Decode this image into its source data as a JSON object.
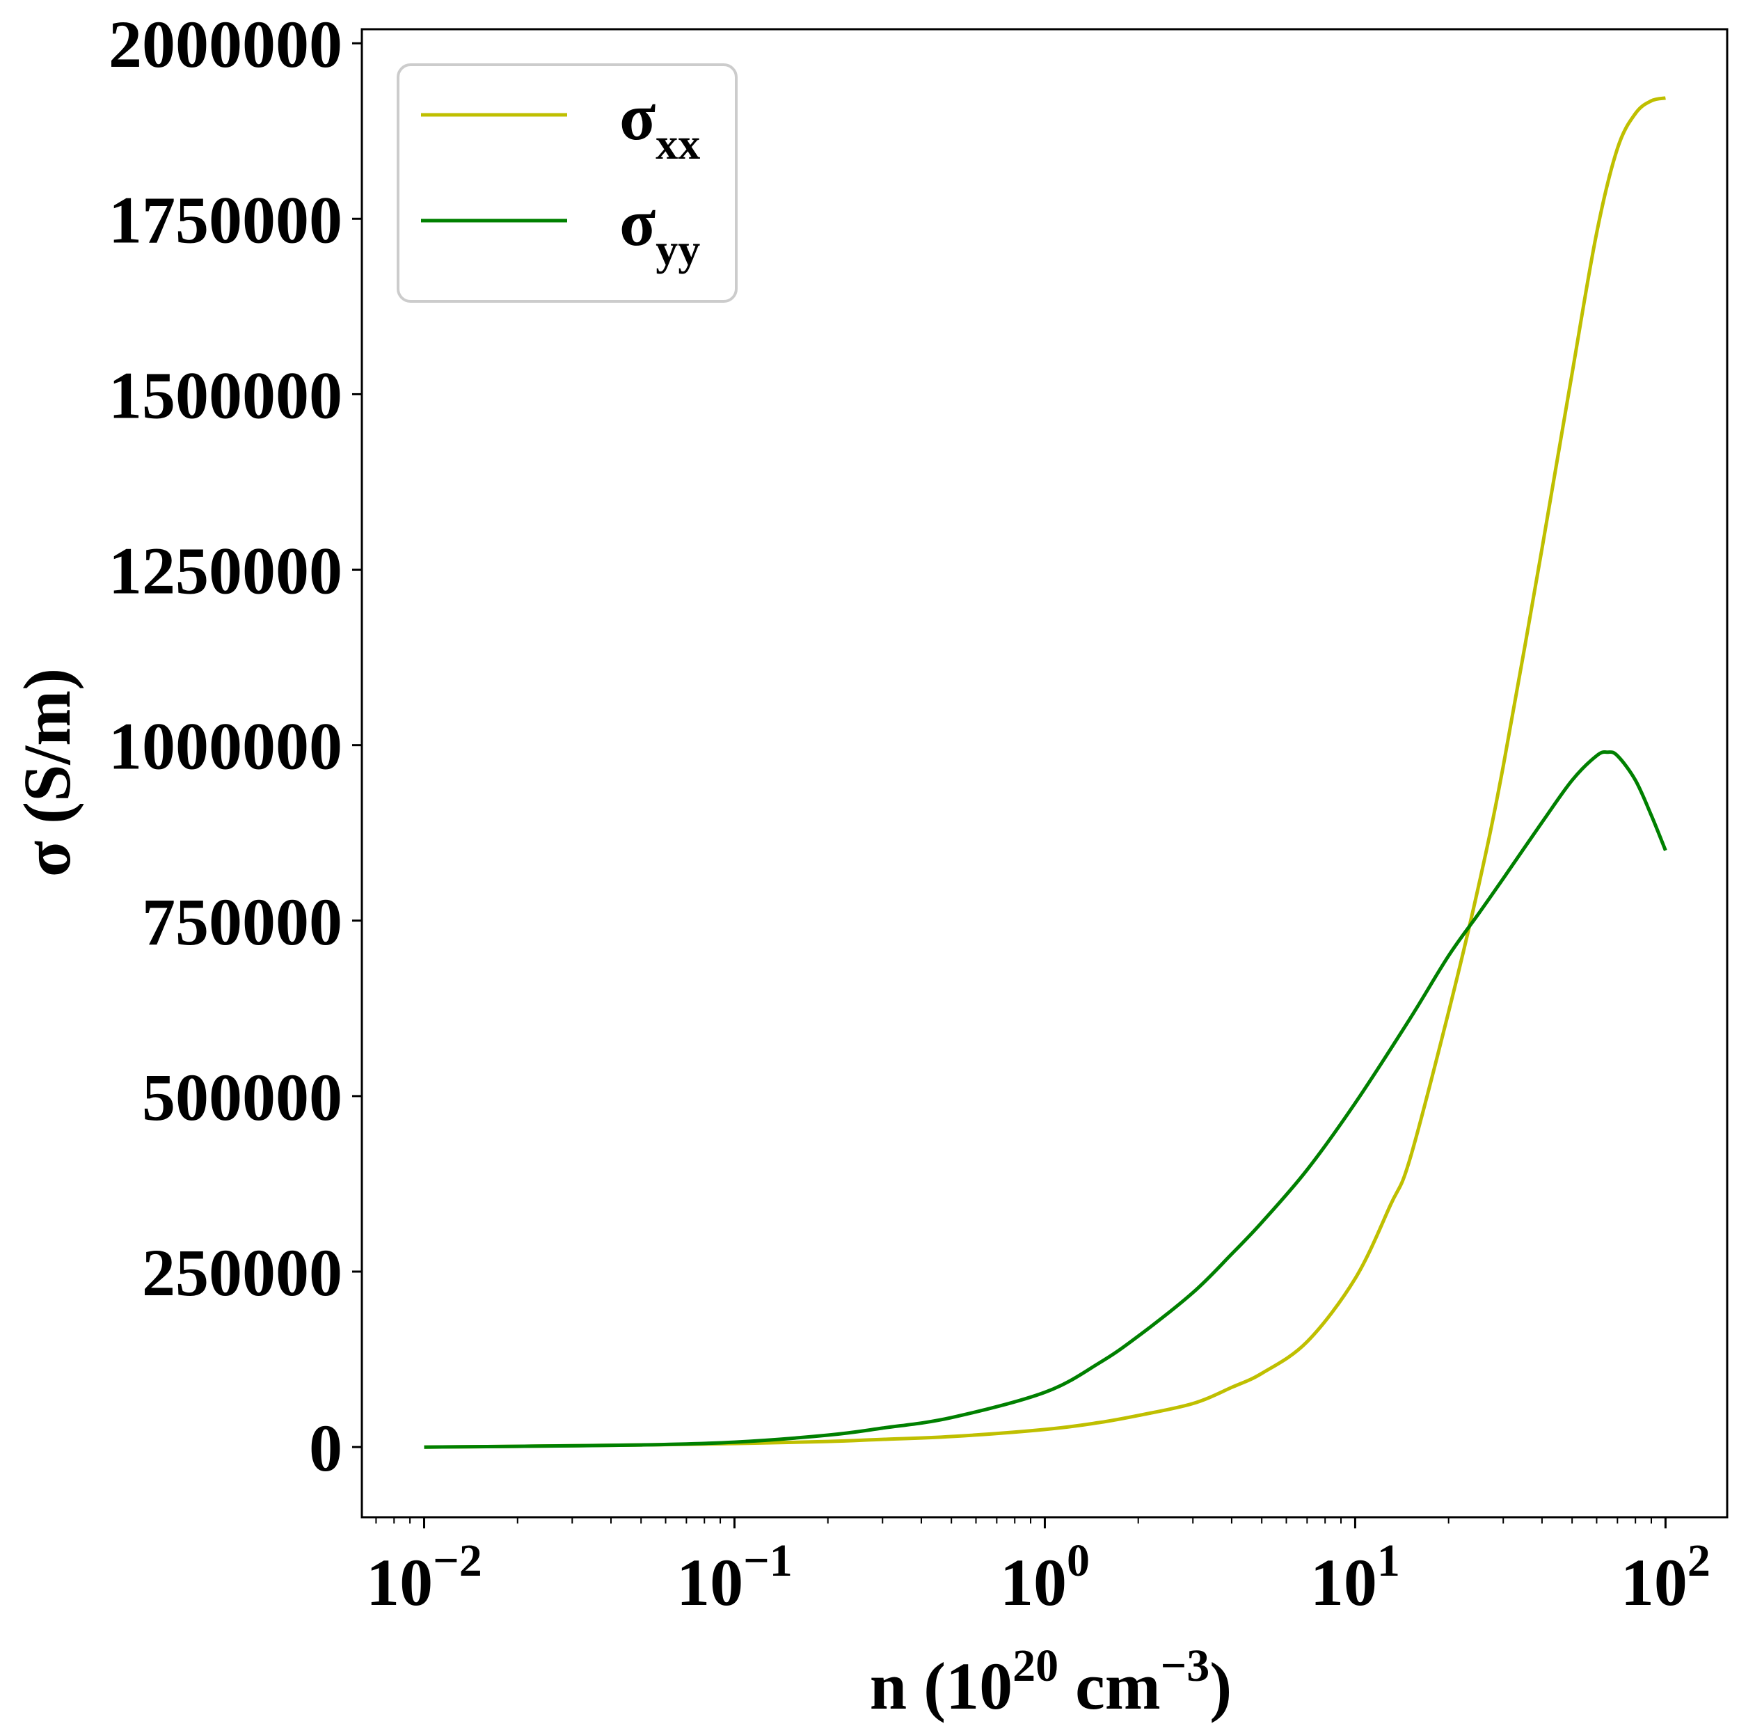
{
  "chart_data": {
    "type": "line",
    "x_scale": "log",
    "xlim": [
      0.0063,
      158
    ],
    "ylim": [
      -100000,
      2020000
    ],
    "xlabel": {
      "base": "n (10",
      "sup1": "20",
      "mid": " cm",
      "sup2": "−3",
      "end": ")"
    },
    "ylabel": "σ (S/m)",
    "y_ticks": [
      0,
      250000,
      500000,
      750000,
      1000000,
      1250000,
      1500000,
      1750000,
      2000000
    ],
    "y_tick_labels": [
      "0",
      "250000",
      "500000",
      "750000",
      "1000000",
      "1250000",
      "1500000",
      "1750000",
      "2000000"
    ],
    "x_ticks": [
      0.01,
      0.1,
      1,
      10,
      100
    ],
    "x_tick_labels": [
      {
        "base": "10",
        "exp": "−2"
      },
      {
        "base": "10",
        "exp": "−1"
      },
      {
        "base": "10",
        "exp": "0"
      },
      {
        "base": "10",
        "exp": "1"
      },
      {
        "base": "10",
        "exp": "2"
      }
    ],
    "grid": false,
    "legend_position": "top-left",
    "series": [
      {
        "name": "σ",
        "name_sub": "xx",
        "color": "#bfbf00",
        "x": [
          0.01,
          0.02,
          0.05,
          0.1,
          0.2,
          0.3,
          0.5,
          1,
          1.5,
          2,
          3,
          4,
          5,
          7,
          10,
          13,
          15,
          20,
          25,
          30,
          40,
          50,
          60,
          70,
          80,
          90,
          100
        ],
        "y": [
          0,
          1000,
          3000,
          5000,
          8000,
          11000,
          15000,
          25000,
          35000,
          45000,
          62000,
          85000,
          105000,
          150000,
          240000,
          345000,
          410000,
          620000,
          800000,
          970000,
          1280000,
          1530000,
          1730000,
          1850000,
          1900000,
          1918000,
          1922000
        ]
      },
      {
        "name": "σ",
        "name_sub": "yy",
        "color": "#008000",
        "x": [
          0.01,
          0.02,
          0.05,
          0.1,
          0.2,
          0.3,
          0.5,
          1,
          1.5,
          2,
          3,
          4,
          5,
          7,
          10,
          15,
          20,
          25,
          30,
          40,
          50,
          60,
          65,
          70,
          80,
          90,
          100
        ],
        "y": [
          0,
          1000,
          3000,
          7000,
          17000,
          27000,
          42000,
          78000,
          120000,
          158000,
          220000,
          275000,
          320000,
          395000,
          490000,
          610000,
          700000,
          760000,
          810000,
          890000,
          950000,
          985000,
          990000,
          985000,
          950000,
          900000,
          850000
        ]
      }
    ]
  }
}
